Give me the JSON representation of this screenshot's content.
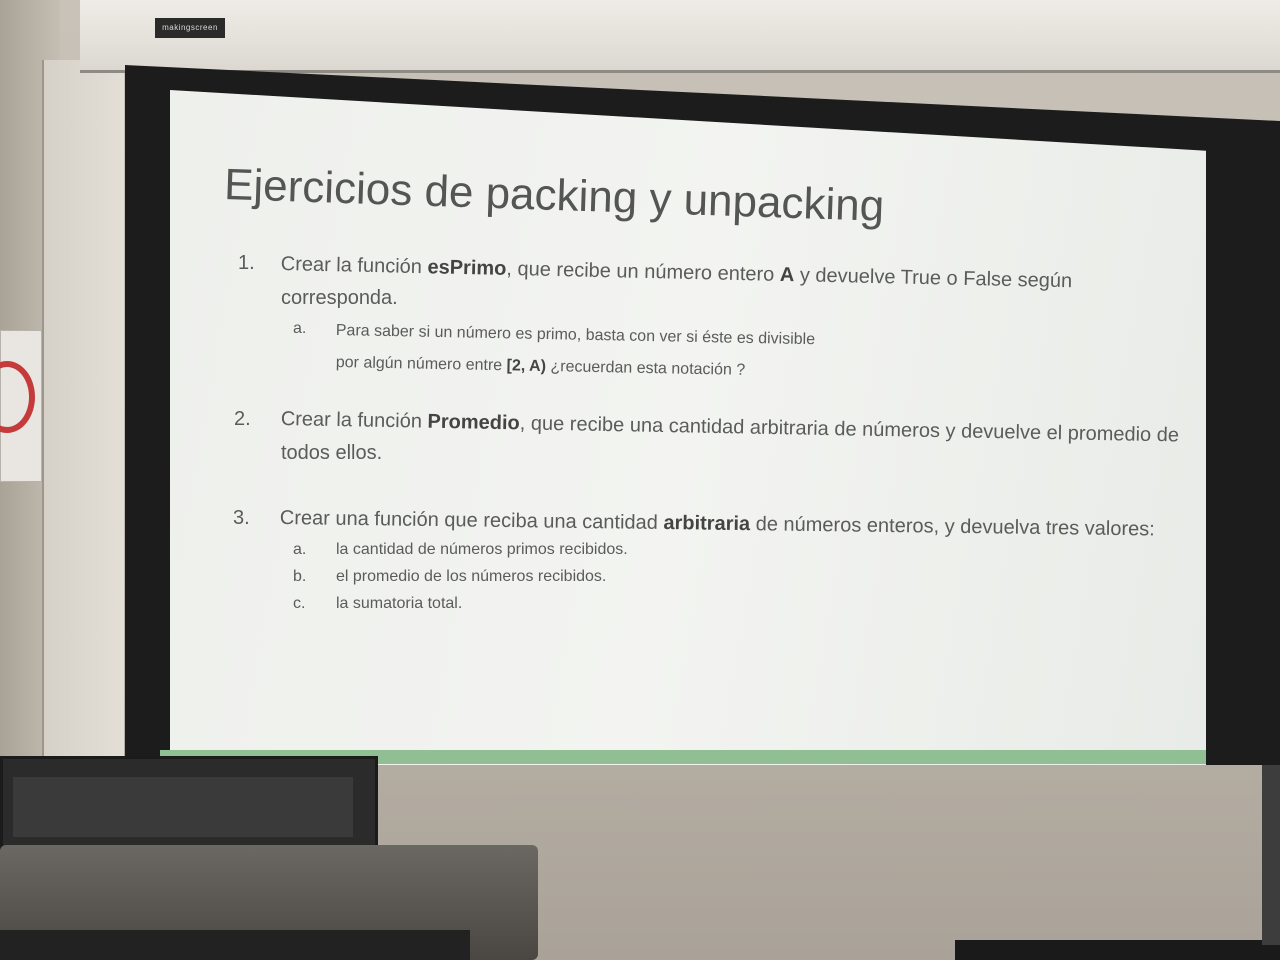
{
  "housing": {
    "brand": "makingscreen"
  },
  "slide": {
    "title": "Ejercicios de packing y unpacking",
    "items": [
      {
        "num": "1.",
        "line1_a": "Crear la función ",
        "line1_b": "esPrimo",
        "line1_c": ", que recibe un número entero ",
        "line1_d": "A",
        "line1_e": " y devuelve True o False según",
        "line2": "corresponda.",
        "sub": {
          "letter": "a.",
          "line1": "Para saber si un número es primo, basta con ver si éste es divisible",
          "line2_a": "por algún número entre ",
          "line2_b": "[2, A)",
          "line2_c": "  ¿recuerdan esta notación ?"
        }
      },
      {
        "num": "2.",
        "line1_a": "Crear la función ",
        "line1_b": "Promedio",
        "line1_c": ", que recibe una cantidad arbitraria de números y devuelve el promedio de",
        "line2": "todos ellos."
      },
      {
        "num": "3.",
        "line1_a": "Crear una función que reciba una cantidad ",
        "line1_b": "arbitraria",
        "line1_c": " de números enteros, y devuelva tres valores:",
        "subs": [
          {
            "letter": "a.",
            "text": "la cantidad de números primos recibidos."
          },
          {
            "letter": "b.",
            "text": "el promedio de los números recibidos."
          },
          {
            "letter": "c.",
            "text": "la sumatoria total."
          }
        ]
      }
    ]
  }
}
